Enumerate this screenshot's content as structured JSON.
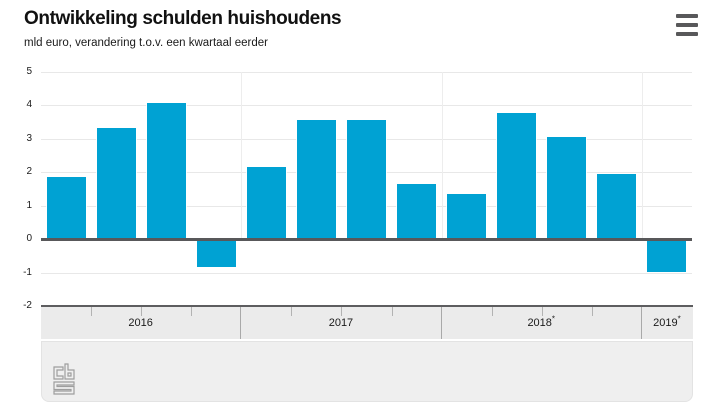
{
  "header": {
    "title": "Ontwikkeling schulden huishoudens",
    "subtitle": "mld euro, verandering t.o.v. een kwartaal eerder"
  },
  "menu": {
    "icon": "hamburger-menu-icon"
  },
  "chart_data": {
    "type": "bar",
    "title": "Ontwikkeling schulden huishoudens",
    "subtitle": "mld euro, verandering t.o.v. een kwartaal eerder",
    "ylabel": "mld euro, verandering t.o.v. een kwartaal eerder",
    "xlabel": "",
    "categories": [
      "2016 Q1",
      "2016 Q2",
      "2016 Q3",
      "2016 Q4",
      "2017 Q1",
      "2017 Q2",
      "2017 Q3",
      "2017 Q4",
      "2018 Q1",
      "2018 Q2",
      "2018 Q3",
      "2018 Q4",
      "2019 Q1"
    ],
    "values": [
      1.85,
      3.3,
      4.05,
      -0.8,
      2.15,
      3.55,
      3.55,
      1.65,
      1.35,
      3.75,
      3.05,
      1.95,
      -0.95
    ],
    "year_groups": [
      {
        "label": "2016",
        "quarters": 4
      },
      {
        "label": "2017",
        "quarters": 4
      },
      {
        "label": "2018*",
        "quarters": 4
      },
      {
        "label": "2019*",
        "quarters": 1
      }
    ],
    "y_ticks": [
      5,
      4,
      3,
      2,
      1,
      0,
      -1,
      -2
    ],
    "ylim": [
      -2,
      5
    ],
    "grid": true,
    "legend_position": "none"
  },
  "footer": {
    "logo": "cbs-logo"
  },
  "colors": {
    "bar": "#00a2d3",
    "zero_line": "#58585a",
    "gridline": "#e8e8e8",
    "year_line": "#ededed",
    "axis_band_bg": "#ebebeb",
    "axis_band_border": "#5d5d5f",
    "footer_bg": "#efefef",
    "text": "#1a1a1a"
  }
}
